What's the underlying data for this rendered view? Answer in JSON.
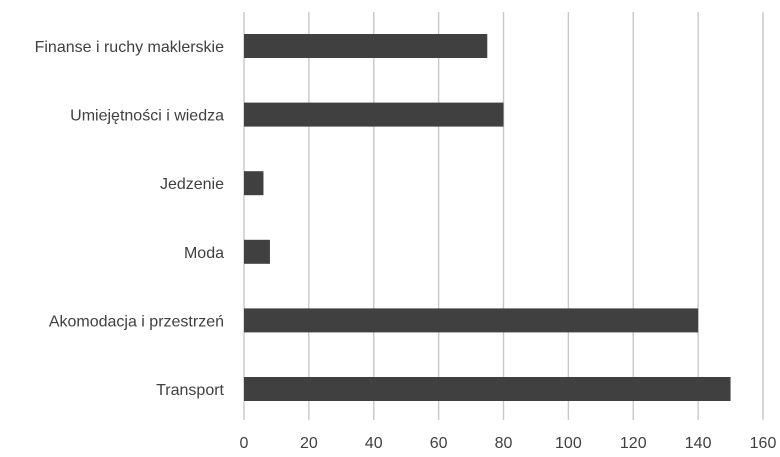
{
  "chart_data": {
    "type": "bar",
    "orientation": "horizontal",
    "title": "",
    "xlabel": "",
    "ylabel": "",
    "categories": [
      "Finanse i ruchy maklerskie",
      "Umiejętności i wiedza",
      "Jedzenie",
      "Moda",
      "Akomodacja i przestrzeń",
      "Transport"
    ],
    "values": [
      75,
      80,
      6,
      8,
      140,
      150
    ],
    "xlim": [
      0,
      160
    ],
    "xticks": [
      "0",
      "20",
      "40",
      "60",
      "80",
      "100",
      "120",
      "140",
      "160"
    ],
    "grid": true,
    "legend": "none",
    "colors": {
      "bar": "#404040",
      "grid": "#c8c8c8",
      "text": "#404040"
    }
  }
}
